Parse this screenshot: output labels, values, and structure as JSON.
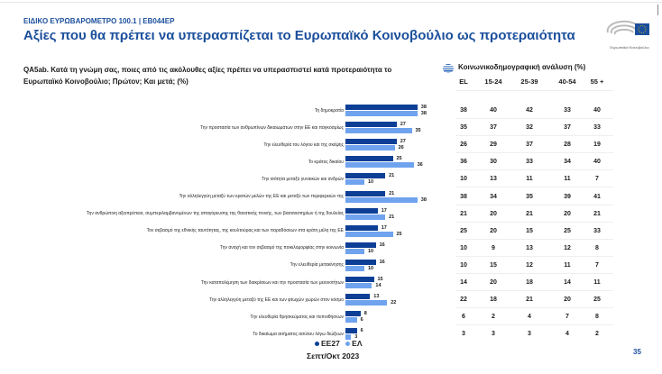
{
  "header": {
    "survey": "ΕΙΔΙΚΟ ΕΥΡΩΒΑΡΟΜΕΤΡΟ 100.1 | EB044EP",
    "title": "Αξίες που θα πρέπει να υπερασπίζεται το Ευρωπαϊκό Κοινοβούλιο ως προτεραιότητα",
    "logo_text": "Ευρωπαϊκό Κοινοβούλιο"
  },
  "question": "QA5ab. Κατά τη γνώμη σας, ποιες από τις ακόλουθες αξίες πρέπει να υπερασπιστεί κατά προτεραιότητα το Ευρωπαϊκό Κοινοβούλιο; Πρώτον; Και μετά; (%)",
  "colors": {
    "EE27": "#0d3f96",
    "EL": "#6fa3ee",
    "accent": "#1b4f9c"
  },
  "chart_data": {
    "type": "bar",
    "orientation": "horizontal",
    "categories": [
      "Τη δημοκρατία",
      "Την προστασία των ανθρωπίνων δικαιωμάτων στην ΕΕ και παγκοσμίως",
      "Την ελευθερία του λόγου και της σκέψης",
      "Το κράτος δικαίου",
      "Την ισότητα μεταξύ γυναικών και ανδρών",
      "Την αλληλεγγύη μεταξύ των κρατών μελών της ΕΕ και μεταξύ των περιφερειών της",
      "Την ανθρώπινη αξιοπρέπεια, συμπεριλαμβανομένων της απαγόρευσης της θανατικής ποινής, των βασανιστηρίων ή της δουλείας",
      "Τον σεβασμό της εθνικής ταυτότητας, της κουλτούρας και των παραδόσεων στα κράτη μέλη της ΕΕ",
      "Την ανοχή και τον σεβασμό της ποικιλομορφίας στην κοινωνία",
      "Την ελευθερία μετακίνησης",
      "Την καταπολέμηση των διακρίσεων και την προστασία των μειονοτήτων",
      "Την αλληλεγγύη μεταξύ της ΕΕ και των φτωχών χωρών στον κόσμο",
      "Την ελευθερία θρησκεύματος και πεποιθήσεων",
      "Το δικαίωμα αιτήματος ασύλου λόγω διώξεων"
    ],
    "series": [
      {
        "name": "EE27",
        "values": [
          38,
          27,
          27,
          25,
          21,
          21,
          17,
          17,
          16,
          16,
          15,
          13,
          8,
          6
        ]
      },
      {
        "name": "ΕΛ",
        "values": [
          38,
          35,
          26,
          36,
          10,
          38,
          21,
          25,
          10,
          10,
          14,
          22,
          6,
          3
        ]
      }
    ],
    "legend": [
      "EE27",
      "ΕΛ"
    ],
    "legend_placement": "bottom",
    "period": "Σεπτ/Οκτ 2023",
    "grid": false
  },
  "table": {
    "title": "Κοινωνικοδημογραφική ανάλυση (%)",
    "headers": [
      "EL",
      "15-24",
      "25-39",
      "40-54",
      "55 +"
    ],
    "rows": [
      [
        38,
        40,
        42,
        33,
        40
      ],
      [
        35,
        37,
        32,
        37,
        33
      ],
      [
        26,
        29,
        37,
        28,
        19
      ],
      [
        36,
        30,
        33,
        34,
        40
      ],
      [
        10,
        13,
        11,
        11,
        7
      ],
      [
        38,
        34,
        35,
        39,
        41
      ],
      [
        21,
        20,
        21,
        20,
        21
      ],
      [
        25,
        20,
        15,
        25,
        33
      ],
      [
        10,
        9,
        13,
        12,
        8
      ],
      [
        10,
        15,
        12,
        11,
        7
      ],
      [
        14,
        20,
        18,
        14,
        11
      ],
      [
        22,
        18,
        21,
        20,
        25
      ],
      [
        6,
        2,
        4,
        7,
        8
      ],
      [
        3,
        3,
        3,
        4,
        2
      ]
    ]
  },
  "page_number": "35"
}
